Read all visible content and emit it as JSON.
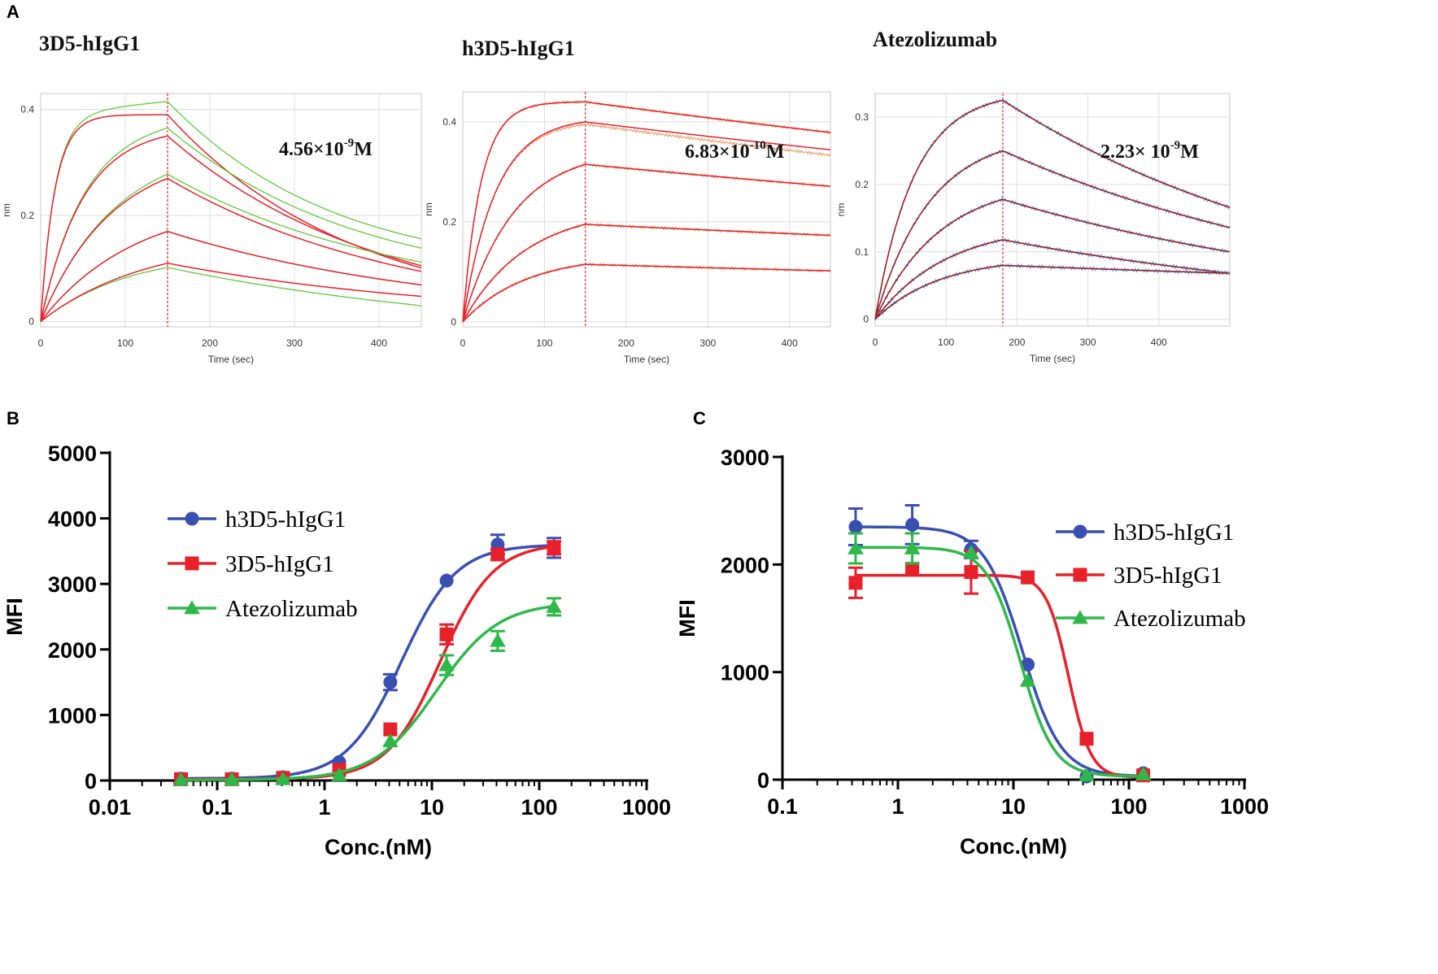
{
  "figure": {
    "panel_labels": {
      "A": "A",
      "B": "B",
      "C": "C"
    }
  },
  "colors": {
    "fit_red": "#e8202a",
    "bli_green": "#5ec83a",
    "bli_orange": "#e8a070",
    "bli_blue": "#6aa8e8",
    "bli_darkred": "#a01818",
    "series_blue": "#3a4fb0",
    "series_red": "#e8202a",
    "series_green": "#2eb84a"
  },
  "chart_data": [
    {
      "id": "A1",
      "type": "line",
      "title": "3D5-hIgG1",
      "kd": {
        "mantissa": "4.56×10",
        "exp": "-9",
        "unit": "M"
      },
      "xlabel": "Time (sec)",
      "ylabel": "nm",
      "xlim": [
        0,
        450
      ],
      "ylim": [
        -0.01,
        0.43
      ],
      "xticks": [
        0,
        100,
        200,
        300,
        400
      ],
      "yticks": [
        0,
        0.2,
        0.4
      ],
      "ytick_labels": [
        "0",
        "0.2",
        "0.4"
      ],
      "switch_time": 150,
      "x_end": 450,
      "raw_color": "green",
      "curves": [
        {
          "peak": 0.39,
          "kobs": 0.06,
          "kd": 0.0045,
          "offset": 0.025
        },
        {
          "peak": 0.35,
          "kobs": 0.02,
          "kd": 0.004,
          "offset": 0.015
        },
        {
          "peak": 0.27,
          "kobs": 0.012,
          "kd": 0.0035,
          "offset": 0.008
        },
        {
          "peak": 0.17,
          "kobs": 0.009,
          "kd": 0.003,
          "offset": 0.0
        },
        {
          "peak": 0.11,
          "kobs": 0.008,
          "kd": 0.0028,
          "offset": -0.008
        }
      ]
    },
    {
      "id": "A2",
      "type": "line",
      "title": "h3D5-hIgG1",
      "kd": {
        "mantissa": "6.83×10",
        "exp": "-10",
        "unit": "M"
      },
      "xlabel": "Time (sec)",
      "ylabel": "nm",
      "xlim": [
        0,
        450
      ],
      "ylim": [
        -0.01,
        0.46
      ],
      "xticks": [
        0,
        100,
        200,
        300,
        400
      ],
      "yticks": [
        0,
        0.2,
        0.4
      ],
      "ytick_labels": [
        "0",
        "0.2",
        "0.4"
      ],
      "switch_time": 150,
      "x_end": 450,
      "raw_color": "orange",
      "curves": [
        {
          "peak": 0.44,
          "kobs": 0.045,
          "kd": 0.0005,
          "offset": 0.0
        },
        {
          "peak": 0.4,
          "kobs": 0.025,
          "kd": 0.0005,
          "offset": -0.005
        },
        {
          "peak": 0.315,
          "kobs": 0.016,
          "kd": 0.0005,
          "offset": 0.0
        },
        {
          "peak": 0.195,
          "kobs": 0.013,
          "kd": 0.0004,
          "offset": 0.0
        },
        {
          "peak": 0.115,
          "kobs": 0.013,
          "kd": 0.0004,
          "offset": 0.0
        }
      ]
    },
    {
      "id": "A3",
      "type": "line",
      "title": "Atezolizumab",
      "kd": {
        "mantissa": "2.23× 10",
        "exp": "-9",
        "unit": "M"
      },
      "xlabel": "Time (sec)",
      "ylabel": "nm",
      "xlim": [
        0,
        500
      ],
      "ylim": [
        -0.01,
        0.335
      ],
      "xticks": [
        0,
        100,
        200,
        300,
        400
      ],
      "yticks": [
        0,
        0.1,
        0.2,
        0.3
      ],
      "ytick_labels": [
        "0",
        "0.1",
        "0.2",
        "0.3"
      ],
      "switch_time": 180,
      "x_end": 500,
      "raw_color": "blue",
      "curves": [
        {
          "peak": 0.325,
          "kobs": 0.018,
          "kd": 0.0021,
          "offset": 0.0
        },
        {
          "peak": 0.25,
          "kobs": 0.013,
          "kd": 0.0019,
          "offset": 0.0
        },
        {
          "peak": 0.178,
          "kobs": 0.011,
          "kd": 0.0018,
          "offset": 0.0
        },
        {
          "peak": 0.118,
          "kobs": 0.01,
          "kd": 0.0017,
          "offset": 0.0
        },
        {
          "peak": 0.08,
          "kobs": 0.011,
          "kd": 0.0005,
          "offset": 0.0
        }
      ]
    },
    {
      "id": "B",
      "type": "scatter",
      "xscale": "log",
      "xlabel": "Conc.(nM)",
      "ylabel": "MFI",
      "xlim": [
        0.01,
        1000
      ],
      "ylim": [
        0,
        5000
      ],
      "xticks": [
        0.01,
        0.1,
        1,
        10,
        100,
        1000
      ],
      "xtick_labels": [
        "0.01",
        "0.1",
        "1",
        "10",
        "100",
        "1000"
      ],
      "yticks": [
        0,
        1000,
        2000,
        3000,
        4000,
        5000
      ],
      "ytick_labels": [
        "0",
        "1000",
        "2000",
        "3000",
        "4000",
        "5000"
      ],
      "legend_position": "upper-left",
      "x": [
        0.046,
        0.137,
        0.41,
        1.37,
        4.1,
        13.7,
        41,
        137
      ],
      "series": [
        {
          "name": "h3D5-hIgG1",
          "marker": "circle",
          "color": "#3a4fb0",
          "values": [
            30,
            30,
            50,
            280,
            1500,
            3050,
            3600,
            3550
          ],
          "errors": [
            0,
            0,
            0,
            0,
            120,
            0,
            150,
            150
          ],
          "fit": {
            "bottom": 30,
            "top": 3600,
            "ec50": 5.2,
            "hill": 1.7
          }
        },
        {
          "name": "3D5-hIgG1",
          "marker": "square",
          "color": "#e8202a",
          "values": [
            20,
            20,
            40,
            160,
            780,
            2230,
            3450,
            3550
          ],
          "errors": [
            0,
            0,
            0,
            0,
            0,
            150,
            80,
            100
          ],
          "fit": {
            "bottom": 20,
            "top": 3620,
            "ec50": 12,
            "hill": 1.75
          }
        },
        {
          "name": "Atezolizumab",
          "marker": "triangle",
          "color": "#2eb84a",
          "values": [
            10,
            10,
            20,
            80,
            600,
            1760,
            2130,
            2650
          ],
          "errors": [
            0,
            0,
            0,
            0,
            0,
            150,
            150,
            130
          ],
          "fit": {
            "bottom": 10,
            "top": 2720,
            "ec50": 11,
            "hill": 1.5
          }
        }
      ]
    },
    {
      "id": "C",
      "type": "scatter",
      "xscale": "log",
      "xlabel": "Conc.(nM)",
      "ylabel": "MFI",
      "xlim": [
        0.1,
        1000
      ],
      "ylim": [
        0,
        3000
      ],
      "xticks": [
        0.1,
        1,
        10,
        100,
        1000
      ],
      "xtick_labels": [
        "0.1",
        "1",
        "10",
        "100",
        "1000"
      ],
      "yticks": [
        0,
        1000,
        2000,
        3000
      ],
      "ytick_labels": [
        "0",
        "1000",
        "2000",
        "3000"
      ],
      "legend_position": "right",
      "x": [
        0.43,
        1.33,
        4.3,
        13.3,
        43,
        133
      ],
      "series": [
        {
          "name": "h3D5-hIgG1",
          "marker": "circle",
          "color": "#3a4fb0",
          "values": [
            2350,
            2370,
            2140,
            1070,
            30,
            60
          ],
          "errors": [
            170,
            180,
            80,
            0,
            0,
            0
          ],
          "fit": {
            "bottom": 30,
            "top": 2350,
            "ec50": 12,
            "hill": -2.6
          }
        },
        {
          "name": "3D5-hIgG1",
          "marker": "square",
          "color": "#e8202a",
          "values": [
            1830,
            1960,
            1930,
            1880,
            380,
            40
          ],
          "errors": [
            140,
            0,
            200,
            0,
            0,
            0
          ],
          "fit": {
            "bottom": 20,
            "top": 1900,
            "ec50": 30,
            "hill": -4.5
          }
        },
        {
          "name": "Atezolizumab",
          "marker": "triangle",
          "color": "#2eb84a",
          "values": [
            2150,
            2150,
            2110,
            920,
            40,
            50
          ],
          "errors": [
            140,
            140,
            0,
            0,
            0,
            0
          ],
          "fit": {
            "bottom": 30,
            "top": 2160,
            "ec50": 11.5,
            "hill": -3.0
          }
        }
      ]
    }
  ]
}
